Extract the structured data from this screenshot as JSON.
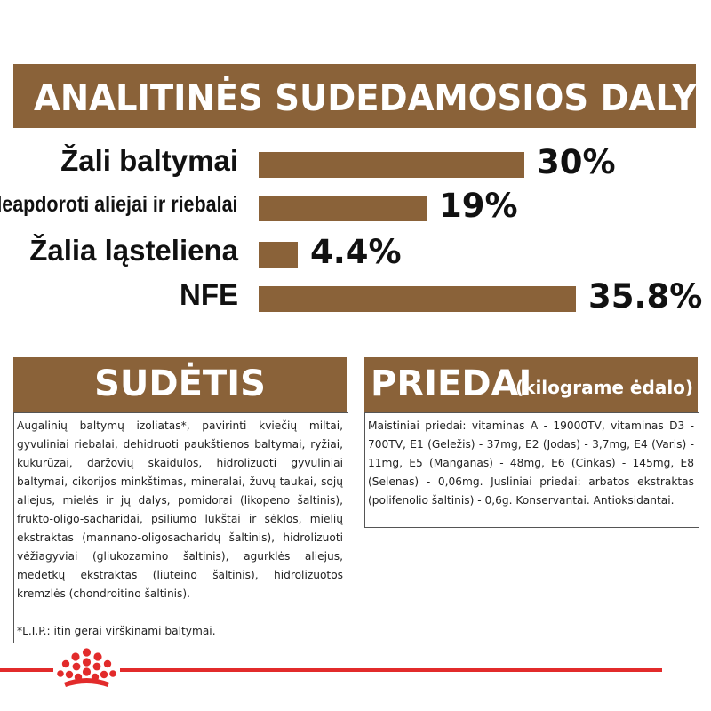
{
  "title": "ANALITINĖS SUDEDAMOSIOS DALYS",
  "chart_data": {
    "type": "bar",
    "orientation": "horizontal",
    "title": "ANALITINĖS SUDEDAMOSIOS DALYS",
    "categories": [
      "Žali baltymai",
      "Neapdoroti aliejai ir riebalai",
      "Žalia ląsteliena",
      "NFE"
    ],
    "values": [
      30,
      19,
      4.4,
      35.8
    ],
    "value_labels": [
      "30%",
      "19%",
      "4.4%",
      "35.8%"
    ],
    "unit": "%",
    "xlim": [
      0,
      35.8
    ],
    "grid": false,
    "legend": "none",
    "bar_color": "#8a6239"
  },
  "sudetis": {
    "title": "SUDĖTIS",
    "text": "Augalinių baltymų izoliatas*, pavirinti kviečių miltai, gyvuliniai riebalai, dehidruoti paukštienos baltymai, ryžiai, kukurūzai, daržovių skaidulos, hidrolizuoti gyvuliniai baltymai, cikorijos minkštimas, mineralai, žuvų taukai, sojų aliejus, mielės ir jų dalys, pomidorai (likopeno šaltinis), frukto-oligo-sacharidai, psiliumo lukštai ir sėklos, mielių ekstraktas (mannano-oligosacharidų šaltinis), hidrolizuoti vėžiagyviai (gliukozamino šaltinis), agurklės aliejus, medetkų ekstraktas (liuteino šaltinis), hidrolizuotos kremzlės (chondroitino šaltinis).",
    "note": "*L.I.P.: itin gerai virškinami baltymai."
  },
  "priedai": {
    "title": "PRIEDAI",
    "subtitle": "(kilograme ėdalo)",
    "text": "Maistiniai priedai: vitaminas A - 19000TV, vitaminas D3 - 700TV, E1 (Geležis) - 37mg, E2 (Jodas) - 3,7mg, E4 (Varis) - 11mg, E5 (Manganas) - 48mg, E6 (Cinkas) - 145mg, E8 (Selenas) - 0,06mg. Jusliniai priedai: arbatos ekstraktas (polifenolio šaltinis) - 0,6g. Konservantai. Antioksidantai."
  },
  "colors": {
    "brown": "#8a6239",
    "red": "#e22b2b"
  },
  "logo": "royal-canin-crown-icon"
}
